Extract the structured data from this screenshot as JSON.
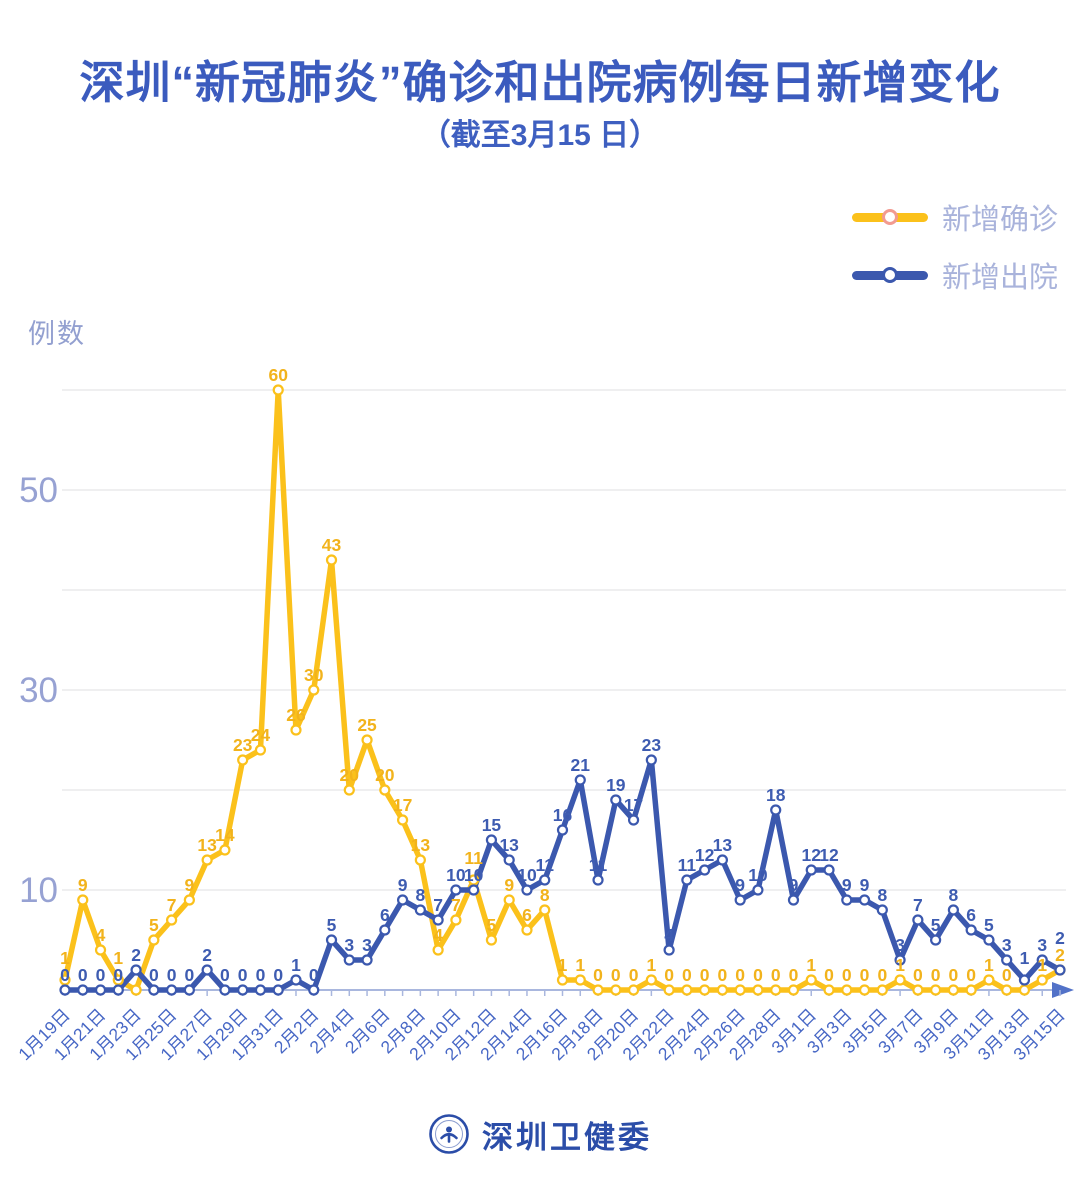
{
  "header": {
    "title": "深圳“新冠肺炎”确诊和出院病例每日新增变化",
    "subtitle": "（截至3月15 日）"
  },
  "legend": {
    "items": [
      {
        "label": "新增确诊",
        "color": "#FBC11B",
        "marker_ring": "#F29B91"
      },
      {
        "label": "新增出院",
        "color": "#3B58AE",
        "marker_ring": "#3B58AE"
      }
    ]
  },
  "footer": {
    "brand": "深圳卫健委",
    "color": "#2B4DA8"
  },
  "chart_data": {
    "type": "line",
    "title": "深圳“新冠肺炎”确诊和出院病例每日新增变化",
    "subtitle": "（截至3月15 日）",
    "ylabel": "例数",
    "xlabel": "",
    "ylim": [
      0,
      62
    ],
    "y_ticks_labeled": [
      10,
      30,
      50
    ],
    "gridline_values": [
      10,
      20,
      30,
      40,
      50,
      60
    ],
    "grid": true,
    "legend_position": "top-right",
    "x_tick_every": 2,
    "dates": [
      "1月19日",
      "1月20日",
      "1月21日",
      "1月22日",
      "1月23日",
      "1月24日",
      "1月25日",
      "1月26日",
      "1月27日",
      "1月28日",
      "1月29日",
      "1月30日",
      "1月31日",
      "2月1日",
      "2月2日",
      "2月3日",
      "2月4日",
      "2月5日",
      "2月6日",
      "2月7日",
      "2月8日",
      "2月9日",
      "2月10日",
      "2月11日",
      "2月12日",
      "2月13日",
      "2月14日",
      "2月15日",
      "2月16日",
      "2月17日",
      "2月18日",
      "2月19日",
      "2月20日",
      "2月21日",
      "2月22日",
      "2月23日",
      "2月24日",
      "2月25日",
      "2月26日",
      "2月27日",
      "2月28日",
      "2月29日",
      "3月1日",
      "3月2日",
      "3月3日",
      "3月4日",
      "3月5日",
      "3月6日",
      "3月7日",
      "3月8日",
      "3月9日",
      "3月10日",
      "3月11日",
      "3月12日",
      "3月13日",
      "3月14日",
      "3月15日"
    ],
    "series": [
      {
        "name": "新增确诊",
        "color": "#FBC11B",
        "label_color": "#F2B31C",
        "values": [
          1,
          9,
          4,
          1,
          0,
          5,
          7,
          9,
          13,
          14,
          23,
          24,
          60,
          26,
          30,
          43,
          20,
          25,
          20,
          17,
          13,
          4,
          7,
          11,
          5,
          9,
          6,
          8,
          1,
          1,
          0,
          0,
          0,
          1,
          0,
          0,
          0,
          0,
          0,
          0,
          0,
          0,
          1,
          0,
          0,
          0,
          0,
          1,
          0,
          0,
          0,
          0,
          1,
          0,
          0,
          1,
          2
        ],
        "hidden_label_indices": [
          4,
          54
        ]
      },
      {
        "name": "新增出院",
        "color": "#3B58AE",
        "label_color": "#3E5CB1",
        "values": [
          0,
          0,
          0,
          0,
          2,
          0,
          0,
          0,
          2,
          0,
          0,
          0,
          0,
          1,
          0,
          5,
          3,
          3,
          6,
          9,
          8,
          7,
          10,
          10,
          15,
          13,
          10,
          11,
          16,
          21,
          11,
          19,
          17,
          23,
          4,
          11,
          12,
          13,
          9,
          10,
          18,
          9,
          12,
          12,
          9,
          9,
          8,
          3,
          7,
          5,
          8,
          6,
          5,
          3,
          1,
          3,
          2
        ],
        "hidden_label_indices": []
      }
    ],
    "style": {
      "grid_color": "#E5E5E8",
      "axis_color": "#A9B7DE",
      "arrow_color": "#5272C8",
      "date_label_color": "#4767C5",
      "y_tick_color": "#97A2D3"
    }
  }
}
